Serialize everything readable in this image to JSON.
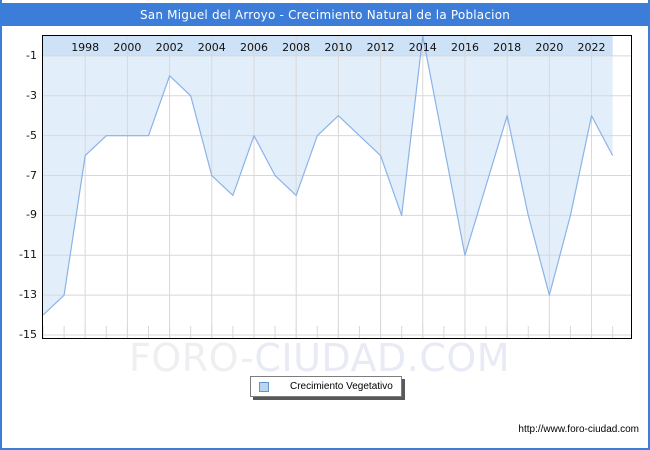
{
  "window": {
    "title": "San Miguel del Arroyo - Crecimiento Natural de la Poblacion",
    "source_url": "http://www.foro-ciudad.com",
    "watermark": {
      "part1": "FORO-",
      "part2": "CIUDAD.COM"
    }
  },
  "legend": {
    "label": "Crecimiento Vegetativo"
  },
  "colors": {
    "titlebar": "#3b7dd8",
    "frame_border": "#3b7dd8",
    "grid": "#d8d8d8",
    "area_fill": "#e3eefb",
    "top_band": "#cde1f7",
    "line": "#8cb3e6",
    "swatch_fill": "#b9d5f2",
    "swatch_border": "#6693c8",
    "plot_border": "#000000"
  },
  "chart_data": {
    "type": "area",
    "title": "San Miguel del Arroyo - Crecimiento Natural de la Poblacion",
    "series_name": "Crecimiento Vegetativo",
    "x": [
      1996,
      1997,
      1998,
      1999,
      2000,
      2001,
      2002,
      2003,
      2004,
      2005,
      2006,
      2007,
      2008,
      2009,
      2010,
      2011,
      2012,
      2013,
      2014,
      2015,
      2016,
      2017,
      2018,
      2019,
      2020,
      2021,
      2022,
      2023
    ],
    "values": [
      -14,
      -13,
      -6,
      -5,
      -5,
      -5,
      -2,
      -3,
      -7,
      -8,
      -5,
      -7,
      -8,
      -5,
      -4,
      -5,
      -6,
      -9,
      0,
      -5.5,
      -11,
      -7.5,
      -4,
      -9,
      -13,
      -9,
      -4,
      -6
    ],
    "xlabel": "",
    "ylabel": "",
    "xlim": [
      1996,
      2023.87
    ],
    "ylim": [
      -15.15,
      0
    ],
    "yticks": [
      -1,
      -3,
      -5,
      -7,
      -9,
      -11,
      -13,
      -15
    ],
    "xticks": [
      1998,
      2000,
      2002,
      2004,
      2006,
      2008,
      2010,
      2012,
      2014,
      2016,
      2018,
      2020,
      2022
    ],
    "grid": true,
    "fill_direction": "to-top",
    "legend_position": "bottom-center"
  }
}
